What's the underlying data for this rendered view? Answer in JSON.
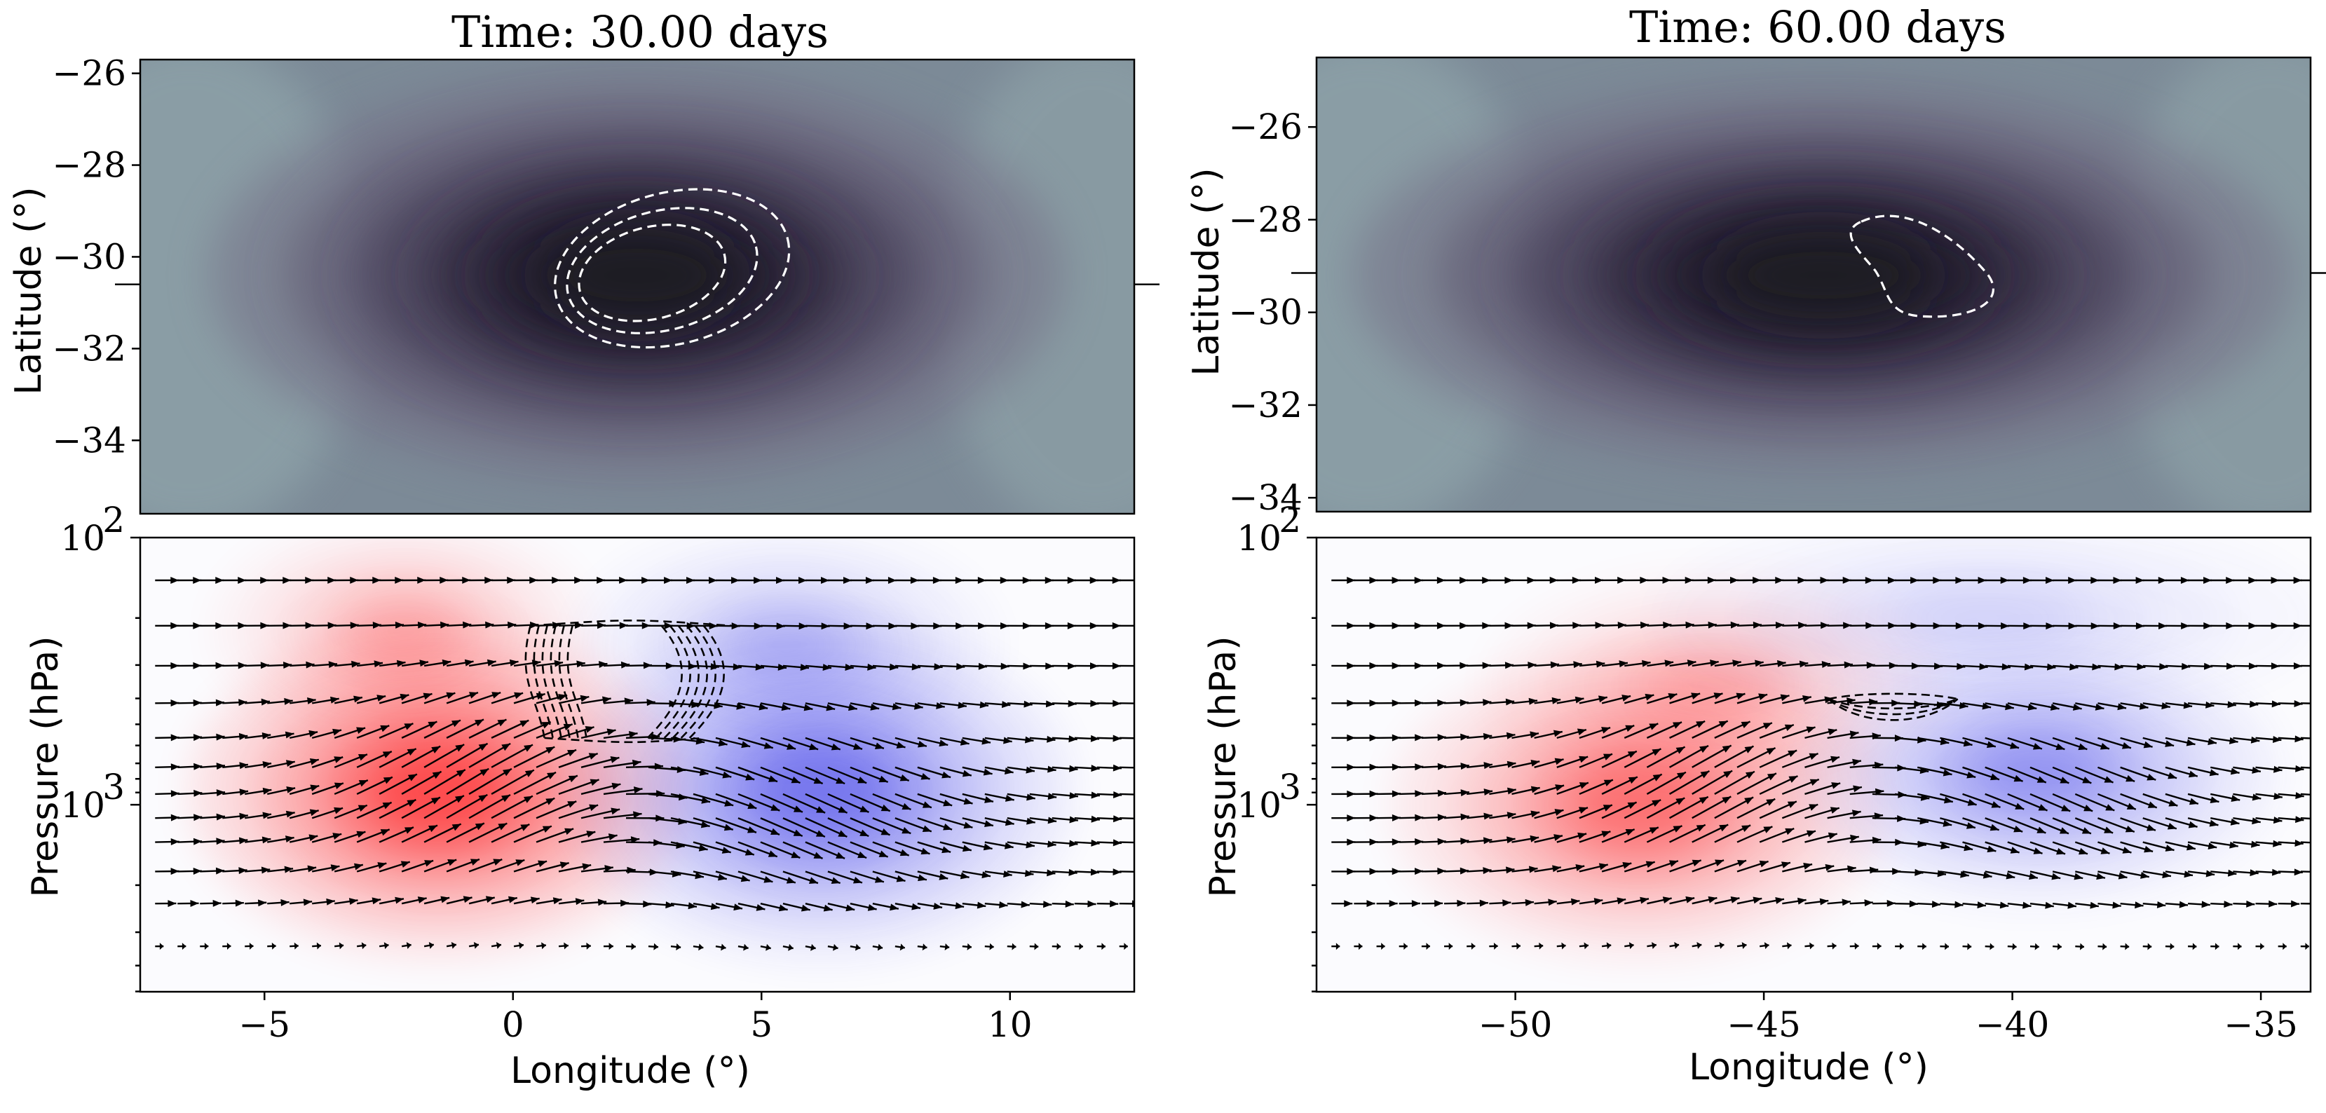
{
  "chart_data": [
    {
      "panel": "top-left",
      "type": "heatmap",
      "title": "Time: 30.00 days",
      "xlabel": "",
      "ylabel": "Latitude (°)",
      "xlim": [
        -7.5,
        12.5
      ],
      "ylim": [
        -35.6,
        -25.7
      ],
      "yticks": [
        -34,
        -32,
        -30,
        -28,
        -26
      ],
      "ytick_labels": [
        "−34",
        "−32",
        "−30",
        "−28",
        "−26"
      ],
      "marker_lat": -30.6,
      "field": {
        "center": [
          2.5,
          -30.4
        ],
        "sigma": [
          3.9,
          2.05
        ],
        "scale": "grey-purple"
      },
      "contours": [
        {
          "cx": 3.2,
          "cy": -30.25,
          "rx": 2.4,
          "ry": 1.65,
          "tilt": -0.25
        },
        {
          "cx": 3.0,
          "cy": -30.3,
          "rx": 1.95,
          "ry": 1.3,
          "tilt": -0.25
        },
        {
          "cx": 2.8,
          "cy": -30.35,
          "rx": 1.5,
          "ry": 1.0,
          "tilt": -0.25
        }
      ]
    },
    {
      "panel": "top-right",
      "type": "heatmap",
      "title": "Time: 60.00 days",
      "xlabel": "",
      "ylabel": "Latitude (°)",
      "xlim": [
        -54,
        -34
      ],
      "ylim": [
        -34.3,
        -24.5
      ],
      "yticks": [
        -34,
        -32,
        -30,
        -28,
        -26
      ],
      "ytick_labels": [
        "−34",
        "−32",
        "−30",
        "−28",
        "−26"
      ],
      "marker_lat": -29.15,
      "field": {
        "center": [
          -43.8,
          -29.2
        ],
        "sigma": [
          4.3,
          1.9
        ],
        "scale": "grey-purple"
      },
      "contours": [
        {
          "cx": -41.7,
          "cy": -29.1,
          "rx": 1.05,
          "ry": 0.95,
          "tilt": 0.0
        }
      ]
    },
    {
      "panel": "bottom-left",
      "type": "heatmap",
      "title": "",
      "xlabel": "Longitude (°)",
      "ylabel": "Pressure (hPa)",
      "xlim": [
        -7.5,
        12.5
      ],
      "yscale": "log",
      "ylim_log10": [
        3.7,
        2.0
      ],
      "xticks": [
        -5,
        0,
        5,
        10
      ],
      "xtick_labels": [
        "−5",
        "0",
        "5",
        "10"
      ],
      "ytick_labels": [
        "10",
        "10"
      ],
      "ytick_exponents": [
        "2",
        "3"
      ],
      "ytick_values_log10": [
        2,
        3
      ],
      "anomalies": [
        {
          "sign": "positive",
          "x": -1.5,
          "logp": 2.95,
          "sx": 2.6,
          "slogp": 0.32,
          "amp": 1.0
        },
        {
          "sign": "positive",
          "x": -2.2,
          "logp": 2.35,
          "sx": 2.0,
          "slogp": 0.22,
          "amp": 0.35
        },
        {
          "sign": "negative",
          "x": 6.2,
          "logp": 2.95,
          "sx": 2.6,
          "slogp": 0.32,
          "amp": 0.85
        },
        {
          "sign": "negative",
          "x": 5.5,
          "logp": 2.4,
          "sx": 2.2,
          "slogp": 0.22,
          "amp": 0.35
        }
      ],
      "wind_rows_log10": [
        2.16,
        2.33,
        2.48,
        2.62,
        2.75,
        2.86,
        2.96,
        3.05,
        3.14,
        3.25,
        3.37,
        3.53
      ],
      "wind_x": [
        -7.2,
        12.2
      ],
      "wind_bursts": [
        {
          "x": -1.0,
          "logp": 2.95,
          "sx": 2.3,
          "slogp": 0.25,
          "dir": "up-right",
          "amp": 1.0
        },
        {
          "x": 5.5,
          "logp": 3.0,
          "sx": 2.6,
          "slogp": 0.25,
          "dir": "down-right",
          "amp": 0.9
        }
      ],
      "contours": [
        {
          "type": "cylinder",
          "x0": 0.35,
          "x1": 4.4,
          "logp_top": 2.33,
          "logp_bottom": 2.75,
          "n": 6
        }
      ]
    },
    {
      "panel": "bottom-right",
      "type": "heatmap",
      "title": "",
      "xlabel": "Longitude (°)",
      "ylabel": "Pressure (hPa)",
      "xlim": [
        -54,
        -34
      ],
      "yscale": "log",
      "ylim_log10": [
        3.7,
        2.0
      ],
      "xticks": [
        -50,
        -45,
        -40,
        -35
      ],
      "xtick_labels": [
        "−50",
        "−45",
        "−40",
        "−35"
      ],
      "ytick_labels": [
        "10",
        "10"
      ],
      "ytick_exponents": [
        "2",
        "3"
      ],
      "ytick_values_log10": [
        2,
        3
      ],
      "anomalies": [
        {
          "sign": "positive",
          "x": -47.5,
          "logp": 3.0,
          "sx": 2.6,
          "slogp": 0.3,
          "amp": 0.7
        },
        {
          "sign": "positive",
          "x": -46.0,
          "logp": 2.55,
          "sx": 2.4,
          "slogp": 0.22,
          "amp": 0.3
        },
        {
          "sign": "negative",
          "x": -39.5,
          "logp": 2.88,
          "sx": 2.5,
          "slogp": 0.25,
          "amp": 0.6
        },
        {
          "sign": "negative",
          "x": -40.5,
          "logp": 2.3,
          "sx": 3.5,
          "slogp": 0.2,
          "amp": 0.2
        }
      ],
      "wind_rows_log10": [
        2.16,
        2.33,
        2.48,
        2.62,
        2.75,
        2.86,
        2.96,
        3.05,
        3.14,
        3.25,
        3.37,
        3.53
      ],
      "wind_x": [
        -53.7,
        -34.2
      ],
      "wind_bursts": [
        {
          "x": -46.5,
          "logp": 2.95,
          "sx": 2.2,
          "slogp": 0.25,
          "dir": "up-right",
          "amp": 0.9
        },
        {
          "x": -39.5,
          "logp": 2.95,
          "sx": 2.4,
          "slogp": 0.22,
          "dir": "down-right",
          "amp": 0.8
        }
      ],
      "contours": [
        {
          "type": "lens",
          "cx": -42.4,
          "logp": 2.62,
          "halfwidth": 1.3,
          "dlogp": 0.07,
          "n": 3
        }
      ]
    }
  ]
}
